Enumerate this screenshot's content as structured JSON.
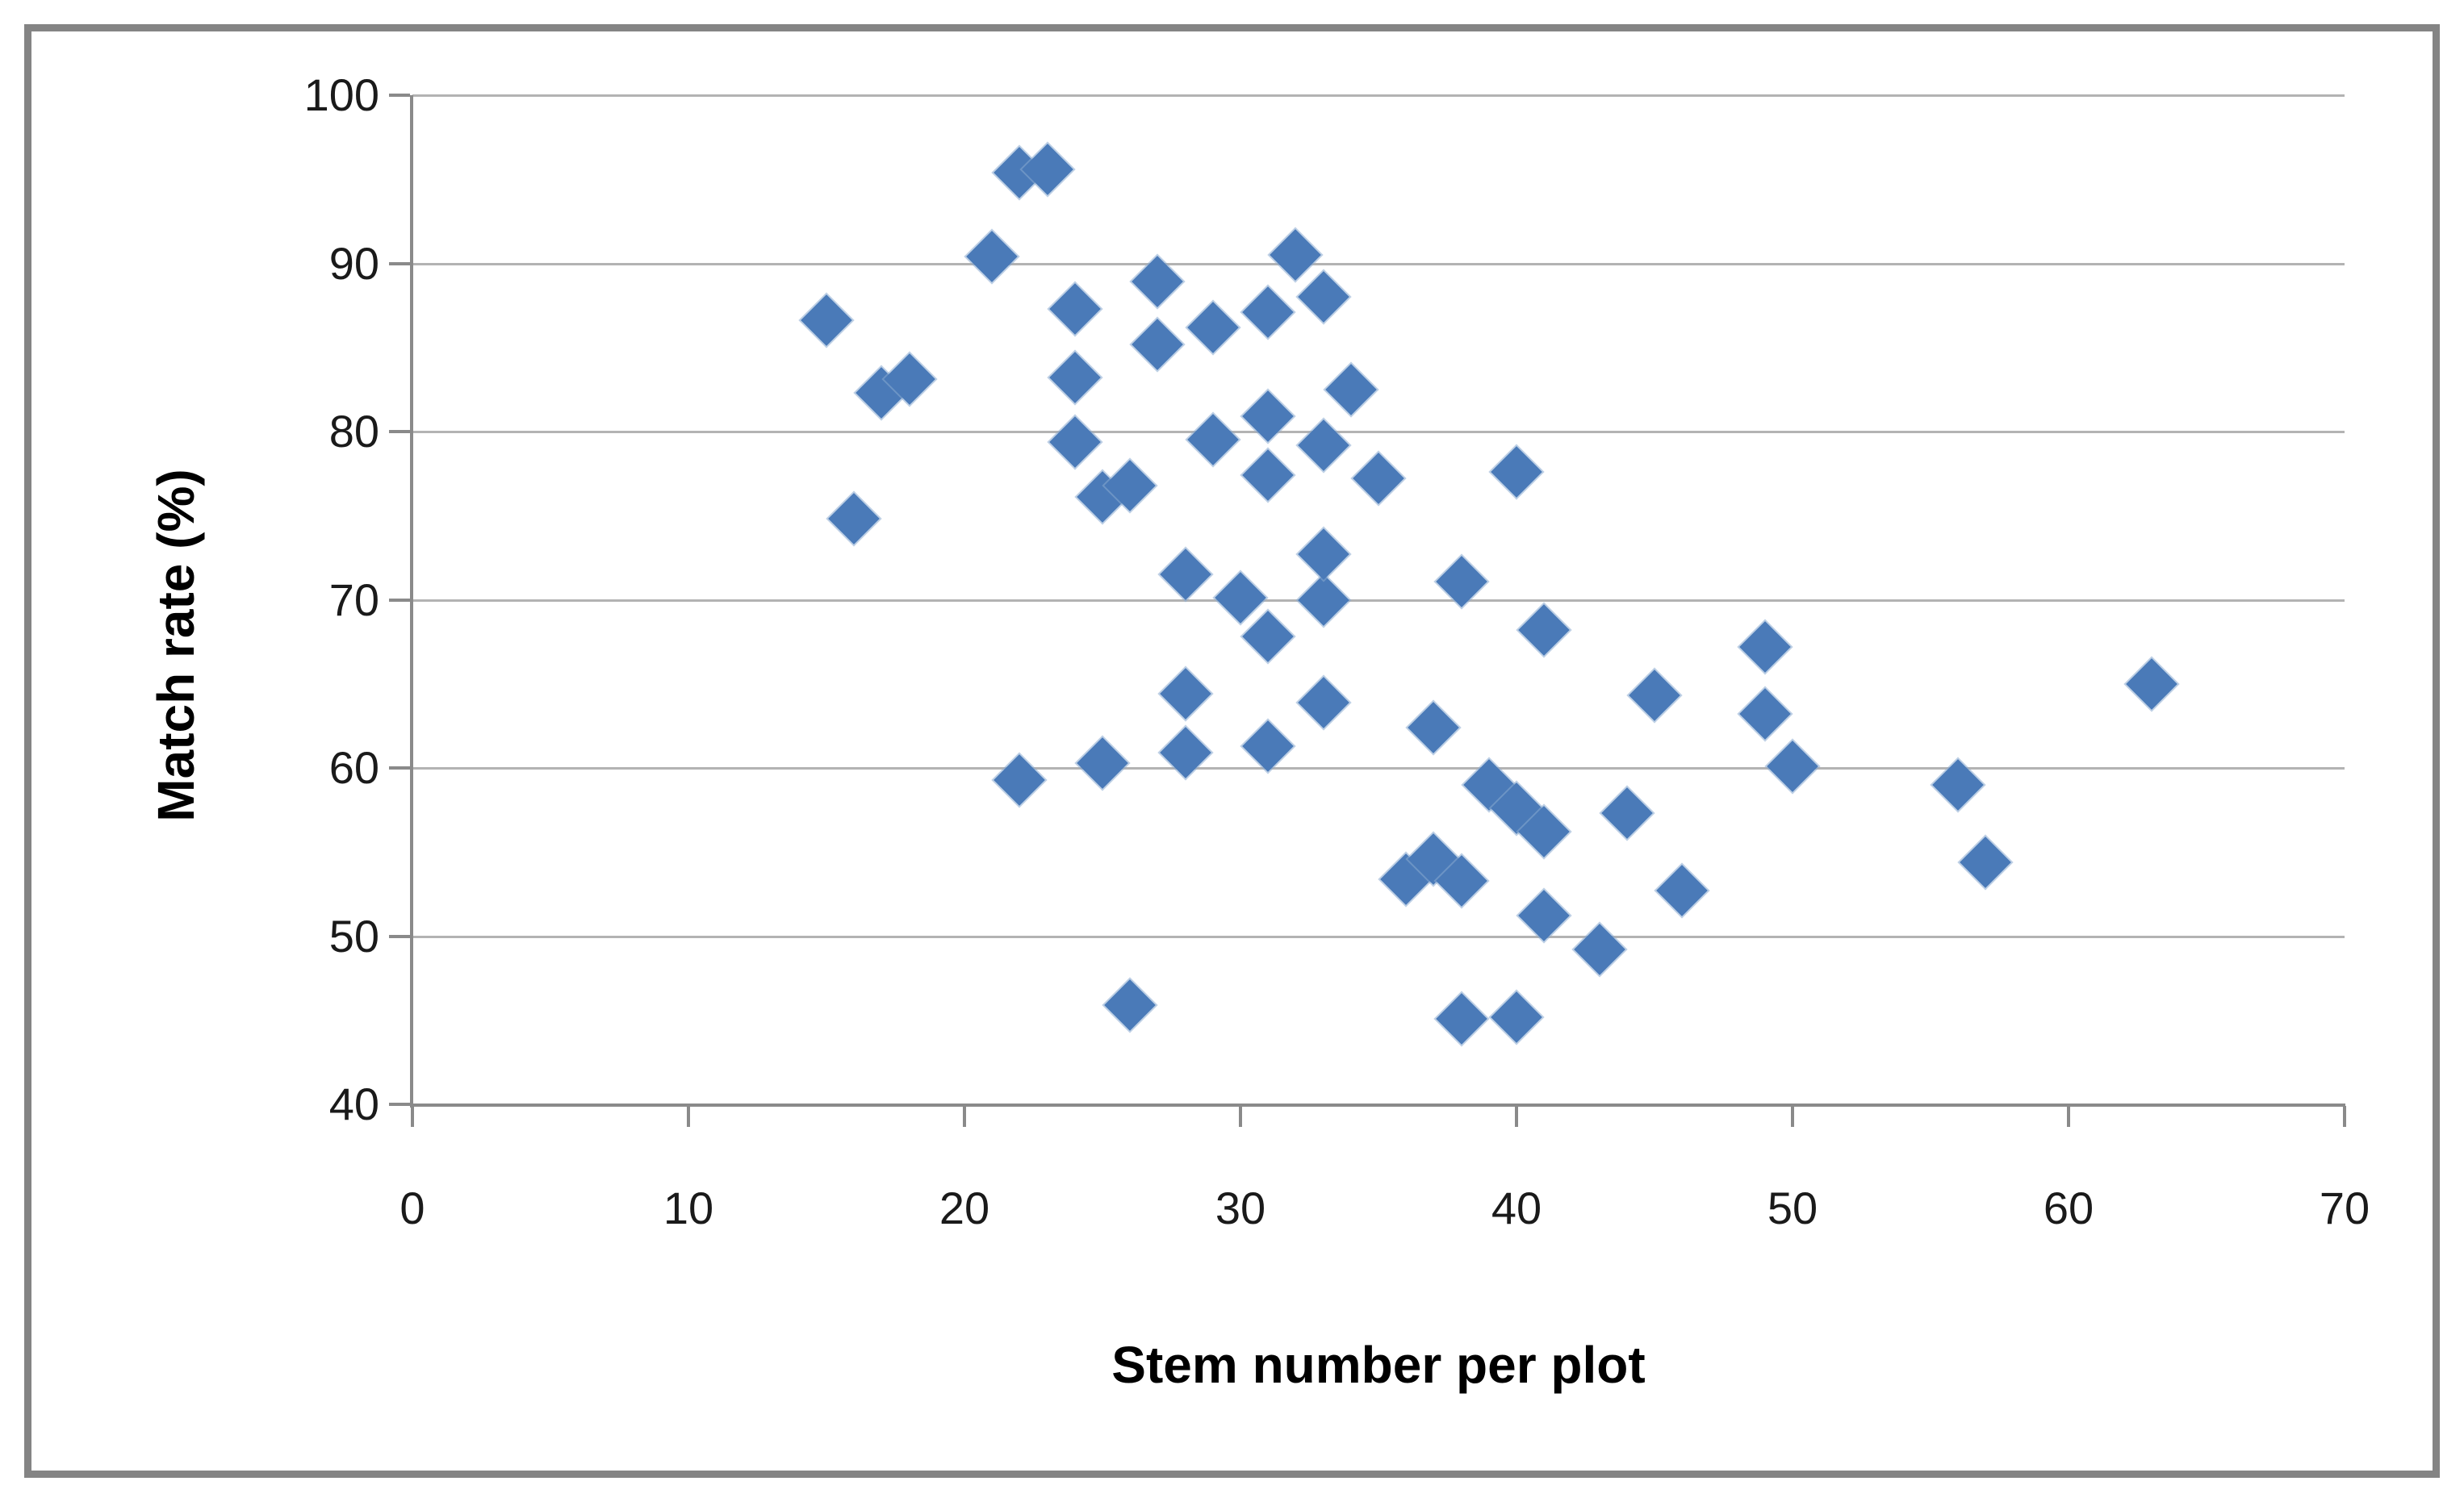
{
  "chart_data": {
    "type": "scatter",
    "title": "",
    "xlabel": "Stem number per plot",
    "ylabel": "Match rate (%)",
    "xlim": [
      0,
      70
    ],
    "ylim": [
      40,
      100
    ],
    "xticks": [
      0,
      10,
      20,
      30,
      40,
      50,
      60,
      70
    ],
    "yticks": [
      40,
      50,
      60,
      70,
      80,
      90,
      100
    ],
    "grid": "horizontal-only",
    "legend_position": "none",
    "marker": {
      "shape": "diamond",
      "color": "#4a7ab8"
    },
    "points": [
      [
        15,
        86.6
      ],
      [
        16,
        74.8
      ],
      [
        17,
        82.3
      ],
      [
        18,
        83.1
      ],
      [
        21,
        90.4
      ],
      [
        22,
        95.4
      ],
      [
        23,
        95.6
      ],
      [
        24,
        87.3
      ],
      [
        24,
        83.2
      ],
      [
        24,
        79.4
      ],
      [
        22,
        59.3
      ],
      [
        25,
        76.1
      ],
      [
        26,
        76.8
      ],
      [
        27,
        88.9
      ],
      [
        27,
        85.2
      ],
      [
        29,
        86.2
      ],
      [
        31,
        87.1
      ],
      [
        33,
        88.0
      ],
      [
        32,
        90.5
      ],
      [
        34,
        82.5
      ],
      [
        31,
        80.9
      ],
      [
        29,
        79.5
      ],
      [
        33,
        79.2
      ],
      [
        31,
        77.4
      ],
      [
        35,
        77.2
      ],
      [
        40,
        77.6
      ],
      [
        38,
        71.1
      ],
      [
        28,
        71.5
      ],
      [
        30,
        70.1
      ],
      [
        33,
        70.0
      ],
      [
        33,
        72.7
      ],
      [
        31,
        67.8
      ],
      [
        41,
        68.2
      ],
      [
        28,
        64.4
      ],
      [
        33,
        63.9
      ],
      [
        37,
        62.4
      ],
      [
        45,
        64.3
      ],
      [
        25,
        60.3
      ],
      [
        28,
        60.9
      ],
      [
        31,
        61.3
      ],
      [
        39,
        59.0
      ],
      [
        40,
        57.6
      ],
      [
        41,
        56.2
      ],
      [
        44,
        57.3
      ],
      [
        46,
        52.7
      ],
      [
        36,
        53.4
      ],
      [
        37,
        54.6
      ],
      [
        38,
        53.3
      ],
      [
        41,
        51.2
      ],
      [
        43,
        49.2
      ],
      [
        26,
        45.9
      ],
      [
        38,
        45.1
      ],
      [
        40,
        45.2
      ],
      [
        49,
        67.2
      ],
      [
        49,
        63.2
      ],
      [
        50,
        60.1
      ],
      [
        56,
        59.0
      ],
      [
        57,
        54.4
      ],
      [
        63,
        65.0
      ]
    ]
  },
  "styles": {
    "marker_color": "#4a7ab8",
    "gridline_color": "#b3b3b3",
    "axis_color": "#8a8a8a",
    "frame_border_color": "#848484",
    "text_color": "#1a1a1a",
    "background": "#ffffff"
  }
}
